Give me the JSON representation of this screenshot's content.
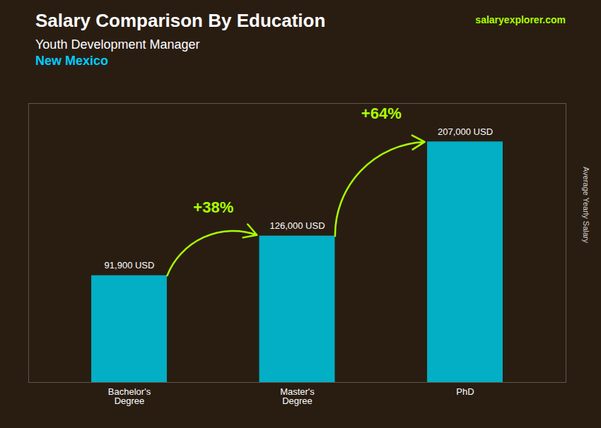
{
  "chart_data": {
    "type": "bar",
    "title": "Salary Comparison By Education",
    "subtitle": [
      "Youth Development Manager",
      "New Mexico"
    ],
    "ylabel": "Average Yearly Salary",
    "categories": [
      "Bachelor's\nDegree",
      "Master's\nDegree",
      "PhD"
    ],
    "values": [
      91900,
      126000,
      207000
    ],
    "value_labels": [
      "91,900 USD",
      "126,000 USD",
      "207,000 USD"
    ],
    "data_labels": true,
    "color": "#00bcd4",
    "ylim": [
      0,
      240000
    ],
    "yticks": [],
    "tick_labels": "x",
    "grid": false,
    "annotations": [
      {
        "text": "+38%",
        "from": "Bachelor's\nDegree",
        "to": "Master's\nDegree",
        "color": "#aaff00"
      },
      {
        "text": "+64%",
        "from": "Master's\nDegree",
        "to": "PhD",
        "color": "#aaff00"
      },
      {
        "text": "salaryexplorer.com"
      }
    ]
  }
}
